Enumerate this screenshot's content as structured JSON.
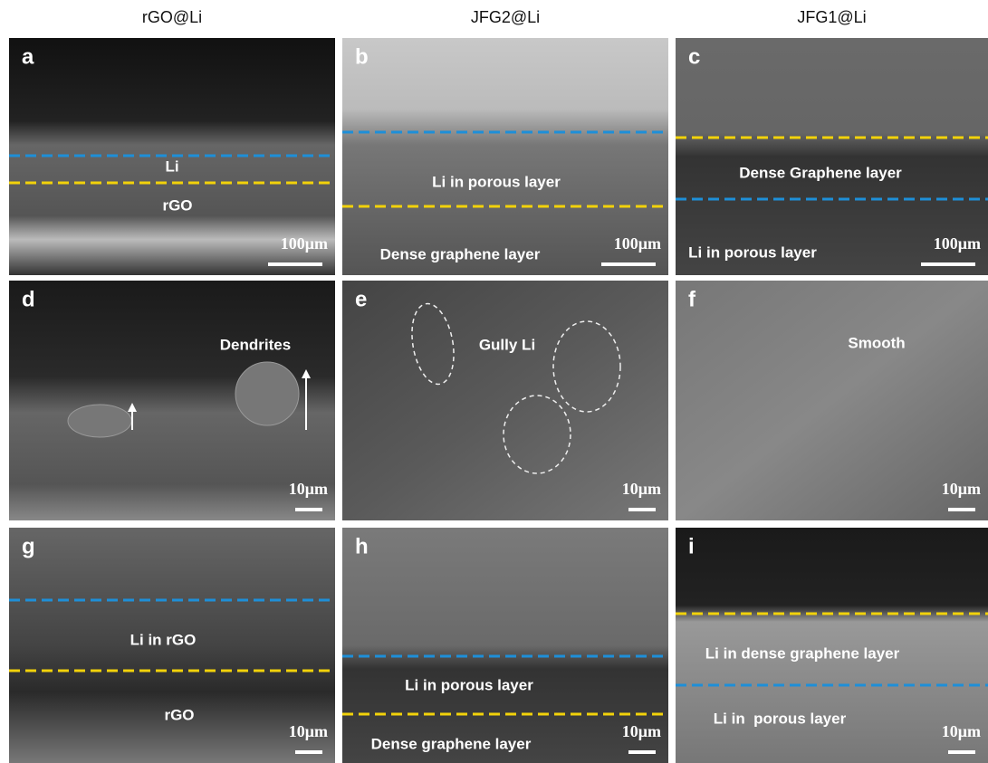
{
  "columns": [
    "rGO@Li",
    "JFG2@Li",
    "JFG1@Li"
  ],
  "panels": [
    {
      "letter": "a",
      "labels": [
        "Li",
        "rGO"
      ],
      "scale": "100μm"
    },
    {
      "letter": "b",
      "labels": [
        "Li in porous layer",
        "Dense graphene layer"
      ],
      "scale": "100μm"
    },
    {
      "letter": "c",
      "labels": [
        "Dense Graphene layer",
        "Li in porous layer"
      ],
      "scale": "100μm"
    },
    {
      "letter": "d",
      "labels": [
        "Dendrites"
      ],
      "scale": "10μm"
    },
    {
      "letter": "e",
      "labels": [
        "Gully Li"
      ],
      "scale": "10μm"
    },
    {
      "letter": "f",
      "labels": [
        "Smooth"
      ],
      "scale": "10μm"
    },
    {
      "letter": "g",
      "labels": [
        "Li in rGO",
        "rGO"
      ],
      "scale": "10μm"
    },
    {
      "letter": "h",
      "labels": [
        "Li in porous layer",
        "Dense graphene layer"
      ],
      "scale": "10μm"
    },
    {
      "letter": "i",
      "labels": [
        "Li in dense graphene layer",
        "Li in  porous layer"
      ],
      "scale": "10μm"
    }
  ]
}
